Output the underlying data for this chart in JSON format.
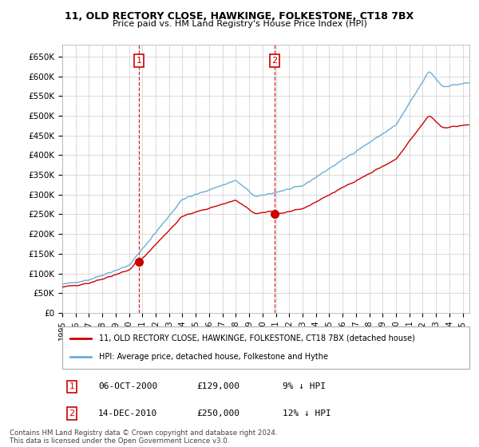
{
  "title": "11, OLD RECTORY CLOSE, HAWKINGE, FOLKESTONE, CT18 7BX",
  "subtitle": "Price paid vs. HM Land Registry's House Price Index (HPI)",
  "hpi_label": "HPI: Average price, detached house, Folkestone and Hythe",
  "property_label": "11, OLD RECTORY CLOSE, HAWKINGE, FOLKESTONE, CT18 7BX (detached house)",
  "footnote": "Contains HM Land Registry data © Crown copyright and database right 2024.\nThis data is licensed under the Open Government Licence v3.0.",
  "sale1_date": "06-OCT-2000",
  "sale1_price": "£129,000",
  "sale1_label": "9% ↓ HPI",
  "sale1_year": 2000.77,
  "sale2_date": "14-DEC-2010",
  "sale2_price": "£250,000",
  "sale2_label": "12% ↓ HPI",
  "sale2_year": 2010.95,
  "hpi_color": "#6baed6",
  "property_color": "#cc0000",
  "vline_color": "#cc0000",
  "grid_color": "#cccccc",
  "background_color": "#ffffff",
  "ylim": [
    0,
    680000
  ],
  "yticks": [
    0,
    50000,
    100000,
    150000,
    200000,
    250000,
    300000,
    350000,
    400000,
    450000,
    500000,
    550000,
    600000,
    650000
  ],
  "xlim_start": 1995,
  "xlim_end": 2025.5
}
